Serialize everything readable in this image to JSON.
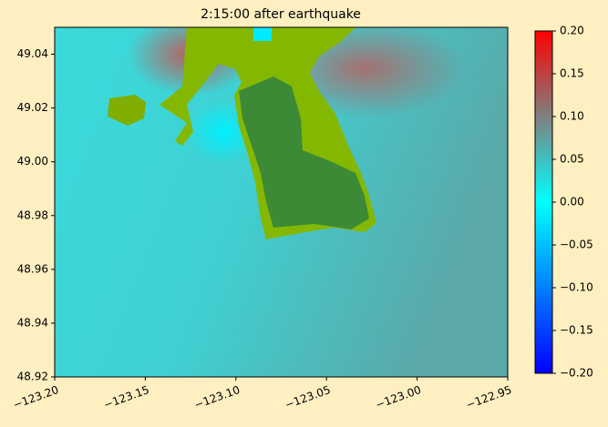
{
  "chart_data": {
    "type": "heatmap",
    "title": "2:15:00 after earthquake",
    "xlim": [
      -123.2,
      -122.95
    ],
    "xticks": [
      {
        "value": -123.2,
        "label": "−123.20"
      },
      {
        "value": -123.15,
        "label": "−123.15"
      },
      {
        "value": -123.1,
        "label": "−123.10"
      },
      {
        "value": -123.05,
        "label": "−123.05"
      },
      {
        "value": -123,
        "label": "−123.00"
      },
      {
        "value": -122.95,
        "label": "−122.95"
      }
    ],
    "ylim": [
      48.92,
      49.05
    ],
    "yticks": [
      48.92,
      48.94,
      48.96,
      48.98,
      {
        "value": 49,
        "label": "49.00"
      },
      49.02,
      49.04
    ],
    "clim": [
      -0.2,
      0.2
    ],
    "cticks": [
      {
        "value": -0.2,
        "label": "−0.20"
      },
      {
        "value": -0.15,
        "label": "−0.15"
      },
      {
        "value": -0.1,
        "label": "−0.10"
      },
      {
        "value": -0.05,
        "label": "−0.05"
      },
      {
        "value": 0,
        "label": "0.00"
      },
      0.05,
      {
        "value": 0.1,
        "label": "0.10"
      },
      0.15,
      {
        "value": 0.2,
        "label": "0.20"
      }
    ]
  }
}
